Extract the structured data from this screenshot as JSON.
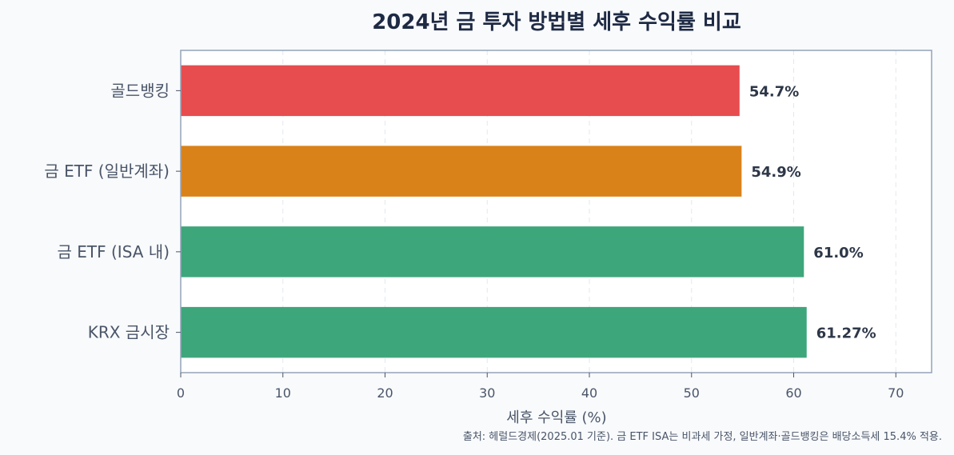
{
  "chart_data": {
    "type": "bar",
    "orientation": "horizontal",
    "title": "2024년 금 투자 방법별 세후 수익률 비교",
    "categories": [
      "골드뱅킹",
      "금 ETF (일반계좌)",
      "금 ETF (ISA 내)",
      "KRX 금시장"
    ],
    "values": [
      54.7,
      54.9,
      61.0,
      61.27
    ],
    "data_labels": [
      "54.7%",
      "54.9%",
      "61.0%",
      "61.27%"
    ],
    "colors": [
      "#e74c4f",
      "#d9821a",
      "#3ea67b",
      "#3ea67b"
    ],
    "xlabel": "세후 수익률 (%)",
    "ylabel": "",
    "xlim": [
      0,
      73.5
    ],
    "xticks": [
      0,
      10,
      20,
      30,
      40,
      50,
      60,
      70
    ],
    "grid": "vertical-dashed",
    "source_note": "출처: 헤럴드경제(2025.01 기준). 금 ETF ISA는 비과세 가정, 일반계좌·골드뱅킹은 배당소득세 15.4% 적용."
  }
}
